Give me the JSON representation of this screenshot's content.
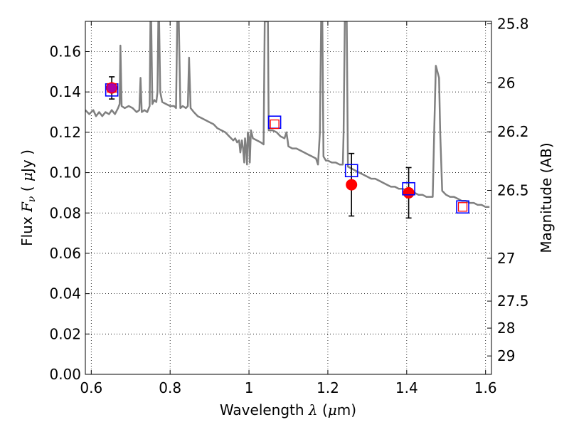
{
  "chart_data": {
    "type": "scatter",
    "title": "",
    "xlabel": "Wavelength  λ (μm)",
    "ylabel": "Flux  Fν  ( μJy )",
    "y2label": "Magnitude (AB)",
    "xlim": [
      0.585,
      1.615
    ],
    "ylim": [
      0.0,
      0.175
    ],
    "grid": true,
    "xticks": [
      0.6,
      0.8,
      1.0,
      1.2,
      1.4,
      1.6
    ],
    "xtick_labels": [
      "0.6",
      "0.8",
      "1",
      "1.2",
      "1.4",
      "1.6"
    ],
    "yticks": [
      0.0,
      0.02,
      0.04,
      0.06,
      0.08,
      0.1,
      0.12,
      0.14,
      0.16
    ],
    "ytick_labels": [
      "0.00",
      "0.02",
      "0.04",
      "0.06",
      "0.08",
      "0.10",
      "0.12",
      "0.14",
      "0.16"
    ],
    "y2ticks": [
      {
        "mag": 25.8,
        "label": "25.8"
      },
      {
        "mag": 26.0,
        "label": "26"
      },
      {
        "mag": 26.2,
        "label": "26.2"
      },
      {
        "mag": 26.5,
        "label": "26.5"
      },
      {
        "mag": 27.0,
        "label": "27"
      },
      {
        "mag": 27.5,
        "label": "27.5"
      },
      {
        "mag": 28.0,
        "label": "28"
      },
      {
        "mag": 29.0,
        "label": "29"
      }
    ],
    "series": [
      {
        "kind": "line",
        "color": "#808080",
        "points": [
          [
            0.585,
            0.131
          ],
          [
            0.595,
            0.129
          ],
          [
            0.605,
            0.131
          ],
          [
            0.612,
            0.128
          ],
          [
            0.62,
            0.13
          ],
          [
            0.628,
            0.128
          ],
          [
            0.636,
            0.13
          ],
          [
            0.645,
            0.129
          ],
          [
            0.652,
            0.131
          ],
          [
            0.66,
            0.129
          ],
          [
            0.668,
            0.132
          ],
          [
            0.672,
            0.134
          ],
          [
            0.674,
            0.163
          ],
          [
            0.677,
            0.133
          ],
          [
            0.685,
            0.132
          ],
          [
            0.695,
            0.133
          ],
          [
            0.705,
            0.132
          ],
          [
            0.715,
            0.13
          ],
          [
            0.722,
            0.131
          ],
          [
            0.725,
            0.147
          ],
          [
            0.728,
            0.13
          ],
          [
            0.735,
            0.131
          ],
          [
            0.742,
            0.13
          ],
          [
            0.748,
            0.133
          ],
          [
            0.75,
            0.175
          ],
          [
            0.752,
            0.175
          ],
          [
            0.755,
            0.134
          ],
          [
            0.76,
            0.136
          ],
          [
            0.765,
            0.135
          ],
          [
            0.768,
            0.14
          ],
          [
            0.77,
            0.175
          ],
          [
            0.772,
            0.175
          ],
          [
            0.775,
            0.14
          ],
          [
            0.78,
            0.135
          ],
          [
            0.79,
            0.134
          ],
          [
            0.8,
            0.133
          ],
          [
            0.81,
            0.133
          ],
          [
            0.815,
            0.132
          ],
          [
            0.818,
            0.175
          ],
          [
            0.822,
            0.175
          ],
          [
            0.826,
            0.132
          ],
          [
            0.832,
            0.133
          ],
          [
            0.84,
            0.132
          ],
          [
            0.845,
            0.133
          ],
          [
            0.848,
            0.157
          ],
          [
            0.852,
            0.132
          ],
          [
            0.86,
            0.13
          ],
          [
            0.87,
            0.128
          ],
          [
            0.88,
            0.127
          ],
          [
            0.89,
            0.126
          ],
          [
            0.9,
            0.125
          ],
          [
            0.91,
            0.124
          ],
          [
            0.92,
            0.122
          ],
          [
            0.93,
            0.121
          ],
          [
            0.94,
            0.12
          ],
          [
            0.95,
            0.118
          ],
          [
            0.96,
            0.116
          ],
          [
            0.965,
            0.117
          ],
          [
            0.97,
            0.115
          ],
          [
            0.975,
            0.116
          ],
          [
            0.978,
            0.11
          ],
          [
            0.982,
            0.116
          ],
          [
            0.985,
            0.112
          ],
          [
            0.988,
            0.105
          ],
          [
            0.99,
            0.117
          ],
          [
            0.993,
            0.111
          ],
          [
            0.995,
            0.104
          ],
          [
            0.997,
            0.12
          ],
          [
            1.0,
            0.117
          ],
          [
            1.002,
            0.105
          ],
          [
            1.005,
            0.121
          ],
          [
            1.01,
            0.117
          ],
          [
            1.02,
            0.116
          ],
          [
            1.03,
            0.115
          ],
          [
            1.037,
            0.114
          ],
          [
            1.04,
            0.175
          ],
          [
            1.048,
            0.175
          ],
          [
            1.05,
            0.121
          ],
          [
            1.06,
            0.121
          ],
          [
            1.07,
            0.12
          ],
          [
            1.08,
            0.118
          ],
          [
            1.09,
            0.117
          ],
          [
            1.095,
            0.12
          ],
          [
            1.098,
            0.116
          ],
          [
            1.1,
            0.113
          ],
          [
            1.11,
            0.112
          ],
          [
            1.12,
            0.112
          ],
          [
            1.13,
            0.111
          ],
          [
            1.14,
            0.11
          ],
          [
            1.15,
            0.109
          ],
          [
            1.16,
            0.108
          ],
          [
            1.17,
            0.107
          ],
          [
            1.175,
            0.104
          ],
          [
            1.18,
            0.12
          ],
          [
            1.183,
            0.175
          ],
          [
            1.186,
            0.175
          ],
          [
            1.189,
            0.108
          ],
          [
            1.195,
            0.106
          ],
          [
            1.2,
            0.106
          ],
          [
            1.21,
            0.105
          ],
          [
            1.22,
            0.105
          ],
          [
            1.23,
            0.104
          ],
          [
            1.238,
            0.104
          ],
          [
            1.24,
            0.12
          ],
          [
            1.243,
            0.175
          ],
          [
            1.248,
            0.175
          ],
          [
            1.251,
            0.103
          ],
          [
            1.26,
            0.102
          ],
          [
            1.27,
            0.101
          ],
          [
            1.28,
            0.1
          ],
          [
            1.29,
            0.099
          ],
          [
            1.3,
            0.098
          ],
          [
            1.31,
            0.097
          ],
          [
            1.32,
            0.097
          ],
          [
            1.33,
            0.096
          ],
          [
            1.34,
            0.095
          ],
          [
            1.35,
            0.094
          ],
          [
            1.36,
            0.093
          ],
          [
            1.37,
            0.093
          ],
          [
            1.38,
            0.092
          ],
          [
            1.39,
            0.092
          ],
          [
            1.4,
            0.091
          ],
          [
            1.41,
            0.09
          ],
          [
            1.42,
            0.09
          ],
          [
            1.43,
            0.089
          ],
          [
            1.44,
            0.089
          ],
          [
            1.45,
            0.088
          ],
          [
            1.46,
            0.088
          ],
          [
            1.466,
            0.088
          ],
          [
            1.47,
            0.122
          ],
          [
            1.474,
            0.153
          ],
          [
            1.478,
            0.15
          ],
          [
            1.482,
            0.147
          ],
          [
            1.485,
            0.12
          ],
          [
            1.49,
            0.091
          ],
          [
            1.5,
            0.089
          ],
          [
            1.51,
            0.088
          ],
          [
            1.52,
            0.088
          ],
          [
            1.53,
            0.087
          ],
          [
            1.54,
            0.086
          ],
          [
            1.55,
            0.086
          ],
          [
            1.56,
            0.085
          ],
          [
            1.57,
            0.085
          ],
          [
            1.58,
            0.084
          ],
          [
            1.59,
            0.084
          ],
          [
            1.6,
            0.083
          ],
          [
            1.61,
            0.083
          ]
        ]
      },
      {
        "kind": "measured",
        "color": "#ff0000",
        "errorbar_color": "#000000",
        "points": [
          {
            "x": 0.652,
            "y": 0.142,
            "err": 0.0055
          },
          {
            "x": 1.26,
            "y": 0.094,
            "err": 0.0155
          },
          {
            "x": 1.405,
            "y": 0.09,
            "err": 0.0125
          }
        ]
      },
      {
        "kind": "model-large",
        "color": "#0000ff",
        "points": [
          {
            "x": 0.652,
            "y": 0.141
          },
          {
            "x": 1.065,
            "y": 0.125
          },
          {
            "x": 1.26,
            "y": 0.101
          },
          {
            "x": 1.405,
            "y": 0.092
          },
          {
            "x": 1.542,
            "y": 0.083
          }
        ]
      },
      {
        "kind": "model-small",
        "color": "#ff0000",
        "points": [
          {
            "x": 0.652,
            "y": 0.142
          },
          {
            "x": 1.065,
            "y": 0.124
          },
          {
            "x": 1.542,
            "y": 0.083
          }
        ]
      }
    ]
  }
}
